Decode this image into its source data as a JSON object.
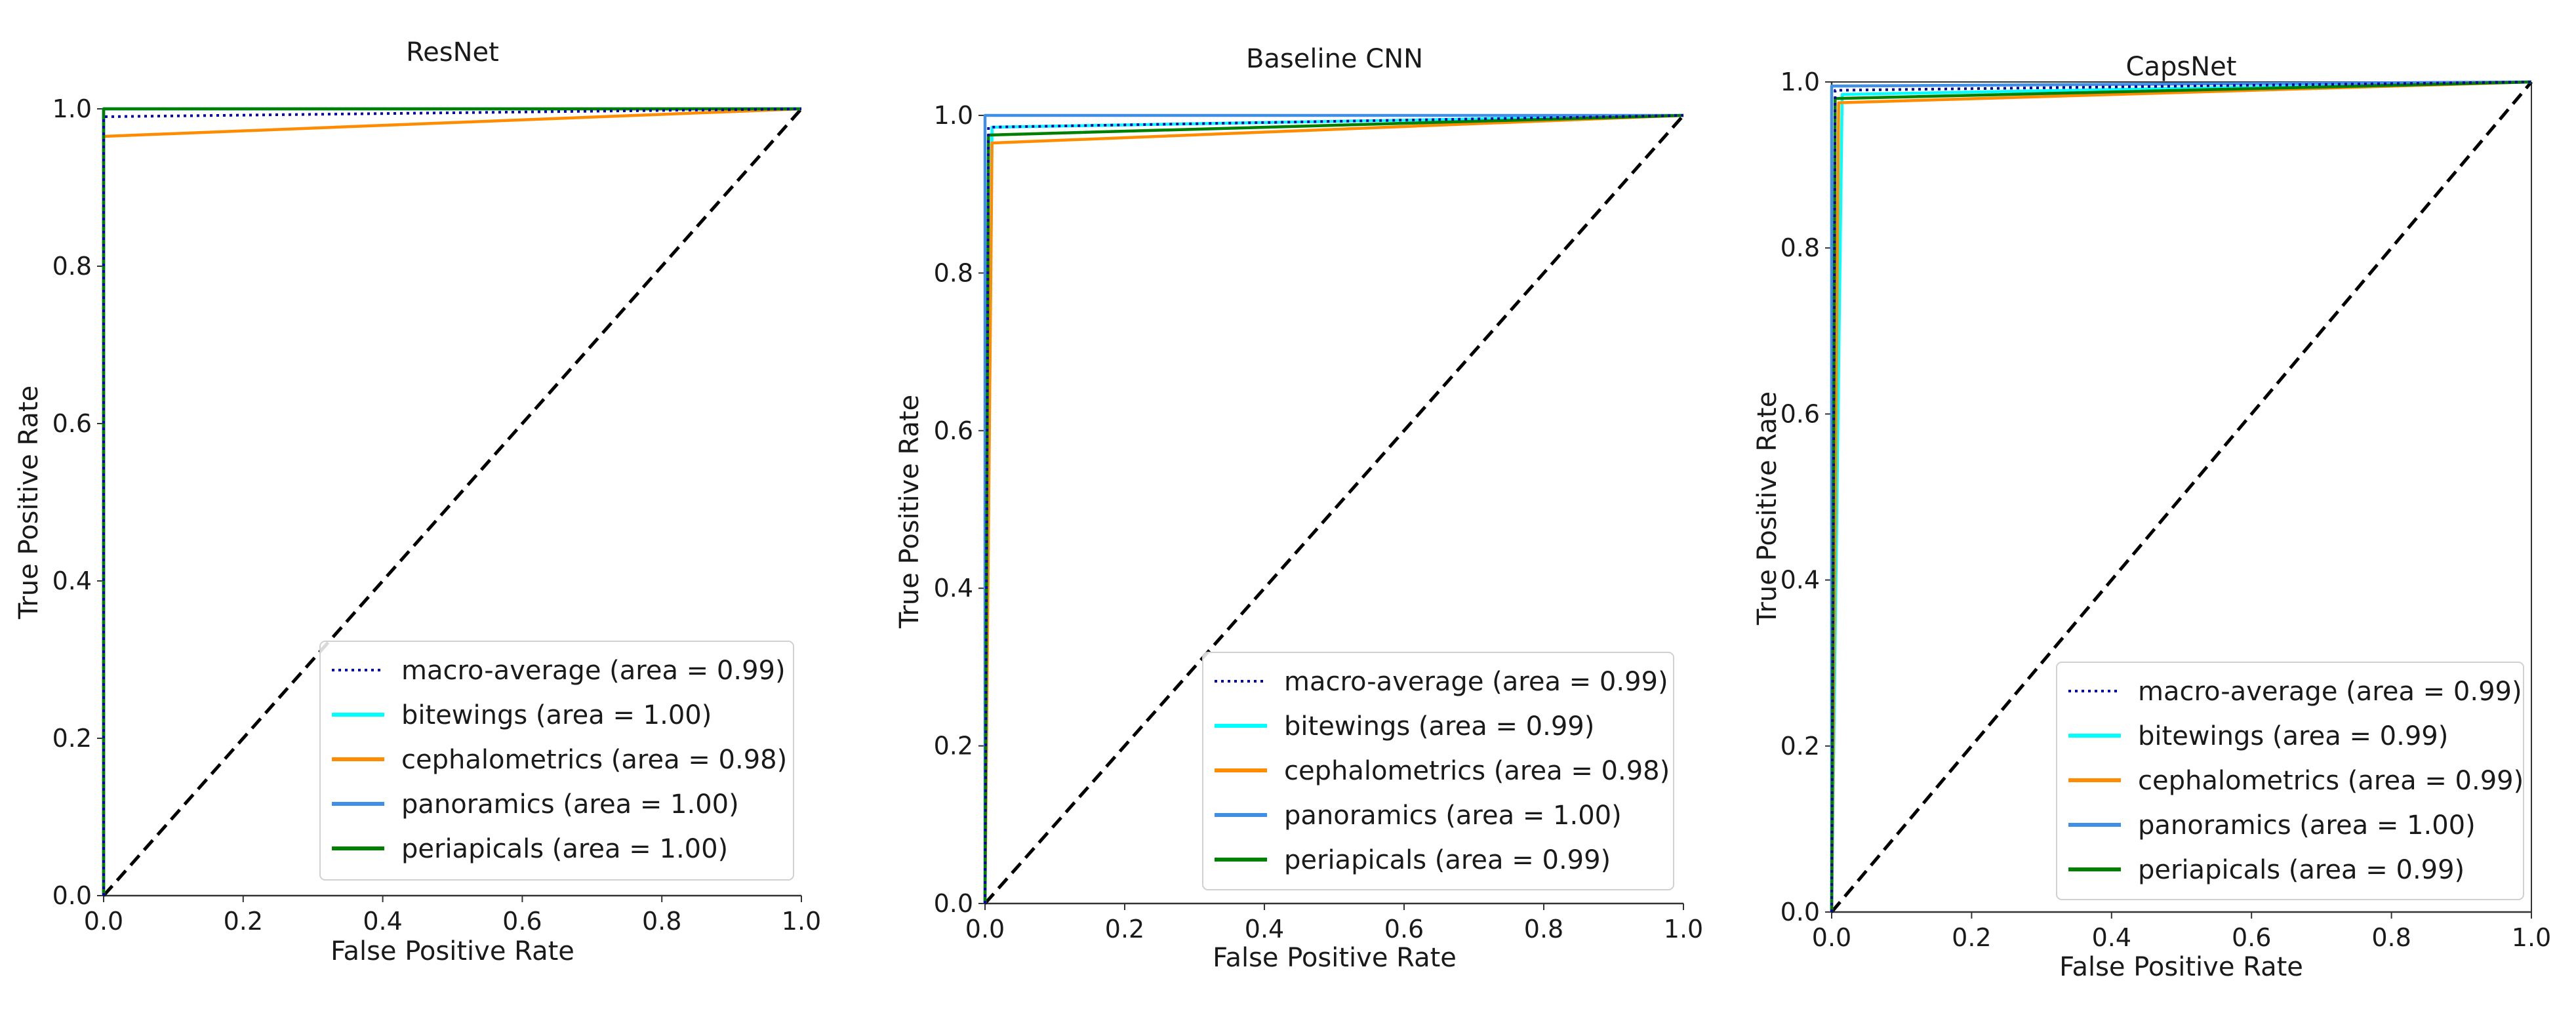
{
  "chart_data": [
    {
      "type": "line",
      "title": "ResNet",
      "xlabel": "False Positive Rate",
      "ylabel": "True Positive Rate",
      "xlim": [
        0.0,
        1.0
      ],
      "ylim": [
        0.0,
        1.0
      ],
      "xticks": [
        "0.0",
        "0.2",
        "0.4",
        "0.6",
        "0.8",
        "1.0"
      ],
      "yticks": [
        "0.0",
        "0.2",
        "0.4",
        "0.6",
        "0.8",
        "1.0"
      ],
      "grid": false,
      "legend_position": "lower-right",
      "series": [
        {
          "name": "macro-average",
          "legend": "macro-average (area = 0.99)",
          "color": "#0000aa",
          "style": "dotted",
          "x": [
            0.0,
            0.0,
            1.0
          ],
          "y": [
            0.0,
            0.99,
            1.0
          ]
        },
        {
          "name": "bitewings",
          "legend": "bitewings (area = 1.00)",
          "color": "#00ffff",
          "style": "solid",
          "x": [
            0.0,
            0.0,
            1.0
          ],
          "y": [
            0.0,
            1.0,
            1.0
          ]
        },
        {
          "name": "cephalometrics",
          "legend": "cephalometrics (area = 0.98)",
          "color": "#ff8c00",
          "style": "solid",
          "x": [
            0.0,
            0.0,
            1.0
          ],
          "y": [
            0.0,
            0.965,
            1.0
          ]
        },
        {
          "name": "panoramics",
          "legend": "panoramics (area = 1.00)",
          "color": "#3f8fe6",
          "style": "solid",
          "x": [
            0.0,
            0.0,
            1.0
          ],
          "y": [
            0.0,
            1.0,
            1.0
          ]
        },
        {
          "name": "periapicals",
          "legend": "periapicals (area = 1.00)",
          "color": "#008000",
          "style": "solid",
          "x": [
            0.0,
            0.0,
            1.0
          ],
          "y": [
            0.0,
            1.0,
            1.0
          ]
        }
      ],
      "diagonal": {
        "x": [
          0.0,
          1.0
        ],
        "y": [
          0.0,
          1.0
        ],
        "color": "#000000",
        "style": "dashed"
      }
    },
    {
      "type": "line",
      "title": "Baseline CNN",
      "xlabel": "False Positive Rate",
      "ylabel": "True Positive Rate",
      "xlim": [
        0.0,
        1.0
      ],
      "ylim": [
        0.0,
        1.0
      ],
      "xticks": [
        "0.0",
        "0.2",
        "0.4",
        "0.6",
        "0.8",
        "1.0"
      ],
      "yticks": [
        "0.0",
        "0.2",
        "0.4",
        "0.6",
        "0.8",
        "1.0"
      ],
      "grid": false,
      "legend_position": "lower-right",
      "series": [
        {
          "name": "macro-average",
          "legend": "macro-average (area = 0.99)",
          "color": "#0000aa",
          "style": "dotted",
          "x": [
            0.0,
            0.005,
            1.0
          ],
          "y": [
            0.0,
            0.985,
            1.0
          ]
        },
        {
          "name": "bitewings",
          "legend": "bitewings (area = 0.99)",
          "color": "#00ffff",
          "style": "solid",
          "x": [
            0.0,
            0.01,
            1.0
          ],
          "y": [
            0.0,
            0.985,
            1.0
          ]
        },
        {
          "name": "cephalometrics",
          "legend": "cephalometrics (area = 0.98)",
          "color": "#ff8c00",
          "style": "solid",
          "x": [
            0.0,
            0.01,
            1.0
          ],
          "y": [
            0.0,
            0.965,
            1.0
          ]
        },
        {
          "name": "panoramics",
          "legend": "panoramics (area = 1.00)",
          "color": "#3f8fe6",
          "style": "solid",
          "x": [
            0.0,
            0.0,
            1.0
          ],
          "y": [
            0.0,
            1.0,
            1.0
          ]
        },
        {
          "name": "periapicals",
          "legend": "periapicals (area = 0.99)",
          "color": "#008000",
          "style": "solid",
          "x": [
            0.0,
            0.005,
            1.0
          ],
          "y": [
            0.0,
            0.975,
            1.0
          ]
        }
      ],
      "diagonal": {
        "x": [
          0.0,
          1.0
        ],
        "y": [
          0.0,
          1.0
        ],
        "color": "#000000",
        "style": "dashed"
      }
    },
    {
      "type": "line",
      "title": "CapsNet",
      "xlabel": "False Positive Rate",
      "ylabel": "True Positive Rate",
      "xlim": [
        0.0,
        1.0
      ],
      "ylim": [
        0.0,
        1.0
      ],
      "xticks": [
        "0.0",
        "0.2",
        "0.4",
        "0.6",
        "0.8",
        "1.0"
      ],
      "yticks": [
        "0.0",
        "0.2",
        "0.4",
        "0.6",
        "0.8",
        "1.0"
      ],
      "grid": false,
      "legend_position": "lower-right",
      "series": [
        {
          "name": "macro-average",
          "legend": "macro-average (area = 0.99)",
          "color": "#0000aa",
          "style": "dotted",
          "x": [
            0.0,
            0.005,
            1.0
          ],
          "y": [
            0.0,
            0.99,
            1.0
          ]
        },
        {
          "name": "bitewings",
          "legend": "bitewings (area = 0.99)",
          "color": "#00ffff",
          "style": "solid",
          "x": [
            0.0,
            0.015,
            1.0
          ],
          "y": [
            0.0,
            0.985,
            1.0
          ]
        },
        {
          "name": "cephalometrics",
          "legend": "cephalometrics (area = 0.99)",
          "color": "#ff8c00",
          "style": "solid",
          "x": [
            0.0,
            0.01,
            1.0
          ],
          "y": [
            0.0,
            0.975,
            1.0
          ]
        },
        {
          "name": "panoramics",
          "legend": "panoramics (area = 1.00)",
          "color": "#3f8fe6",
          "style": "solid",
          "x": [
            0.0,
            0.0,
            1.0
          ],
          "y": [
            0.0,
            0.995,
            1.0
          ]
        },
        {
          "name": "periapicals",
          "legend": "periapicals (area = 0.99)",
          "color": "#008000",
          "style": "solid",
          "x": [
            0.0,
            0.005,
            1.0
          ],
          "y": [
            0.0,
            0.98,
            1.0
          ]
        }
      ],
      "diagonal": {
        "x": [
          0.0,
          1.0
        ],
        "y": [
          0.0,
          1.0
        ],
        "color": "#000000",
        "style": "dashed"
      }
    }
  ]
}
